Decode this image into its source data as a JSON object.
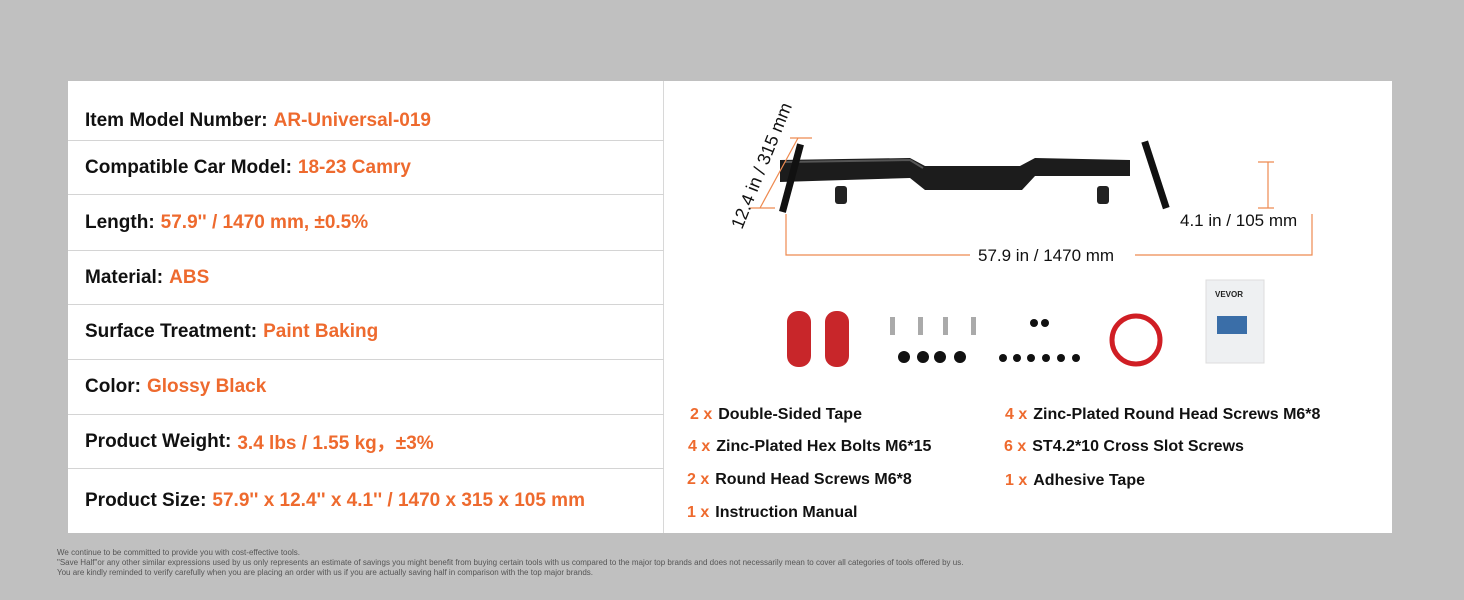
{
  "specs": [
    {
      "label": "Item Model Number:",
      "value": "AR-Universal-019"
    },
    {
      "label": "Compatible Car Model:",
      "value": "18-23 Camry"
    },
    {
      "label": "Length:",
      "value": "57.9'' / 1470 mm, ±0.5%"
    },
    {
      "label": "Material:",
      "value": "ABS"
    },
    {
      "label": "Surface Treatment:",
      "value": "Paint Baking"
    },
    {
      "label": "Color:",
      "value": "Glossy Black"
    },
    {
      "label": "Product Weight:",
      "value": "3.4 lbs / 1.55 kg，±3%"
    },
    {
      "label": "Product Size:",
      "value": "57.9'' x 12.4'' x 4.1'' / 1470 x 315 x 105 mm"
    }
  ],
  "dimensions": {
    "height": "12.4 in / 315 mm",
    "depth": "4.1 in / 105 mm",
    "length": "57.9 in / 1470 mm"
  },
  "manual_brand": "VEVOR",
  "accessories": [
    {
      "qty": "2 x",
      "name": "Double-Sided Tape"
    },
    {
      "qty": "4 x",
      "name": "Zinc-Plated Hex Bolts M6*15"
    },
    {
      "qty": "2 x",
      "name": "Round Head Screws M6*8"
    },
    {
      "qty": "1 x",
      "name": "Instruction Manual"
    },
    {
      "qty": "4 x",
      "name": "Zinc-Plated Round Head Screws M6*8"
    },
    {
      "qty": "6 x",
      "name": "ST4.2*10 Cross Slot Screws"
    },
    {
      "qty": "1 x",
      "name": "Adhesive Tape"
    }
  ],
  "disclaimer": [
    "We continue to be committed to provide you with cost-effective tools.",
    "\"Save Half\"or any other similar expressions used by us only represents an estimate of savings you might benefit from buying certain tools with us compared to the major top brands and does not necessarily mean to cover all categories of tools offered by us.",
    "You are kindly reminded to verify carefully when you are placing an order with us if you are actually saving half in comparison with the top major brands."
  ],
  "colors": {
    "accent": "#ee6a2e",
    "background": "#c0c0c0"
  }
}
